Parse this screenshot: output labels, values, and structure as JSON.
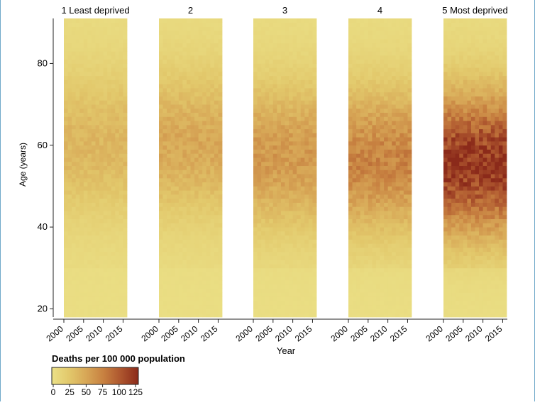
{
  "chart_data": {
    "type": "heatmap",
    "title": "",
    "ylabel": "Age (years)",
    "xlabel": "Year",
    "ylim": [
      18,
      91
    ],
    "xlim": [
      2000,
      2016
    ],
    "y_ticks": [
      20,
      40,
      60,
      80
    ],
    "x_ticks": [
      "2000",
      "2005",
      "2010",
      "2015"
    ],
    "panels": [
      {
        "label": "1 Least deprived",
        "peak_age": 60,
        "peak_value": 38
      },
      {
        "label": "2",
        "peak_age": 60,
        "peak_value": 48
      },
      {
        "label": "3",
        "peak_age": 57,
        "peak_value": 58
      },
      {
        "label": "4",
        "peak_age": 56,
        "peak_value": 72
      },
      {
        "label": "5 Most deprived",
        "peak_age": 55,
        "peak_value": 118
      }
    ],
    "colorbar": {
      "title": "Deaths per 100 000 population",
      "ticks": [
        "0",
        "25",
        "50",
        "75",
        "100",
        "125"
      ],
      "range": [
        0,
        125
      ],
      "colors": [
        "#ebe187",
        "#e2c86b",
        "#d7a656",
        "#c78040",
        "#ad552e",
        "#8b2a1a"
      ]
    }
  }
}
